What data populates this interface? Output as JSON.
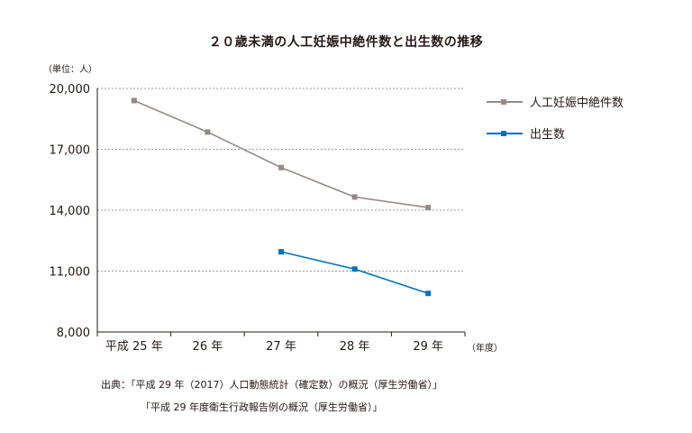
{
  "title": "２０歳未満の人工妊娠中絶件数と出生数の推移",
  "unit_label": "（単位：人）",
  "x_unit_label": "（年度）",
  "legend": [
    {
      "label": "人工妊娠中絶件数",
      "color": "#958a87"
    },
    {
      "label": "出生数",
      "color": "#0072bc"
    }
  ],
  "source": {
    "line1": "出典：「平成 29 年（2017）人口動態統計（確定数）の概況（厚生労働省）」",
    "line2": "「平成 29 年度衛生行政報告例の概況（厚生労働省）」"
  },
  "chart_data": {
    "type": "line",
    "title": "２０歳未満の人工妊娠中絶件数と出生数の推移",
    "categories": [
      "平成 25 年",
      "26 年",
      "27 年",
      "28 年",
      "29 年"
    ],
    "ylim": [
      8000,
      20000
    ],
    "yticks": [
      "8,000",
      "11,000",
      "14,000",
      "17,000",
      "20,000"
    ],
    "ytick_values": [
      8000,
      11000,
      14000,
      17000,
      20000
    ],
    "ylabel": "（単位：人）",
    "xlabel": "（年度）",
    "grid": true,
    "legend_position": "right",
    "series": [
      {
        "name": "人工妊娠中絶件数",
        "color": "#958a87",
        "values": [
          19400,
          17850,
          16100,
          14650,
          14130
        ]
      },
      {
        "name": "出生数",
        "color": "#0072bc",
        "values": [
          null,
          null,
          11950,
          11100,
          9900
        ]
      }
    ]
  }
}
